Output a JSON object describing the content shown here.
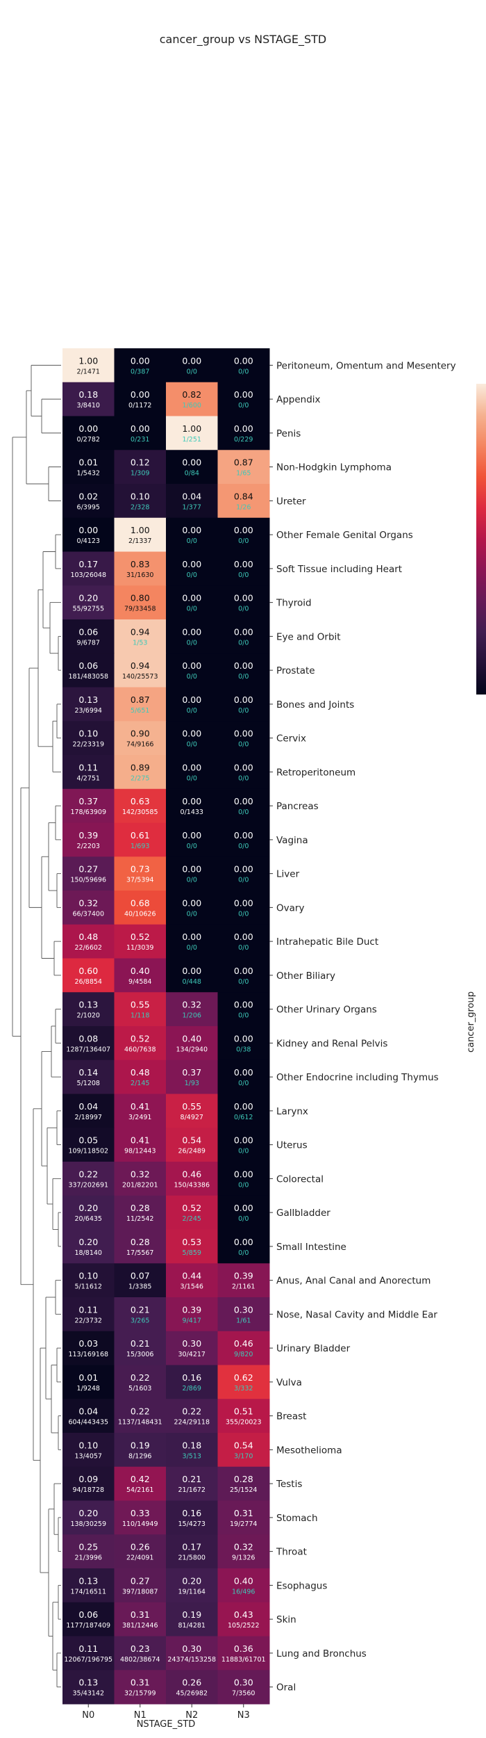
{
  "chart_data": {
    "type": "heatmap",
    "title": "cancer_group vs NSTAGE_STD",
    "xlabel": "NSTAGE_STD",
    "ylabel": "cancer_group",
    "columns": [
      "N0",
      "N1",
      "N2",
      "N3"
    ],
    "colorscale": "rocket",
    "value_range": [
      0,
      1
    ],
    "colorbar": {
      "ticks": [],
      "placement": "right"
    },
    "dendrogram": "left",
    "rows": [
      {
        "label": "Peritoneum, Omentum and Mesentery",
        "values": [
          1.0,
          0.0,
          0.0,
          0.0
        ],
        "counts": [
          "2/1471",
          "0/387",
          "0/0",
          "0/0"
        ]
      },
      {
        "label": "Appendix",
        "values": [
          0.18,
          0.0,
          0.82,
          0.0
        ],
        "counts": [
          "3/8410",
          "0/1172",
          "1/600",
          "0/0"
        ]
      },
      {
        "label": "Penis",
        "values": [
          0.0,
          0.0,
          1.0,
          0.0
        ],
        "counts": [
          "0/2782",
          "0/231",
          "1/251",
          "0/229"
        ]
      },
      {
        "label": "Non-Hodgkin Lymphoma",
        "values": [
          0.01,
          0.12,
          0.0,
          0.87
        ],
        "counts": [
          "1/5432",
          "1/309",
          "0/84",
          "1/65"
        ]
      },
      {
        "label": "Ureter",
        "values": [
          0.02,
          0.1,
          0.04,
          0.84
        ],
        "counts": [
          "6/3995",
          "2/328",
          "1/377",
          "1/26"
        ]
      },
      {
        "label": "Other Female Genital Organs",
        "values": [
          0.0,
          1.0,
          0.0,
          0.0
        ],
        "counts": [
          "0/4123",
          "2/1337",
          "0/0",
          "0/0"
        ]
      },
      {
        "label": "Soft Tissue including Heart",
        "values": [
          0.17,
          0.83,
          0.0,
          0.0
        ],
        "counts": [
          "103/26048",
          "31/1630",
          "0/0",
          "0/0"
        ]
      },
      {
        "label": "Thyroid",
        "values": [
          0.2,
          0.8,
          0.0,
          0.0
        ],
        "counts": [
          "55/92755",
          "79/33458",
          "0/0",
          "0/0"
        ]
      },
      {
        "label": "Eye and Orbit",
        "values": [
          0.06,
          0.94,
          0.0,
          0.0
        ],
        "counts": [
          "9/6787",
          "1/53",
          "0/0",
          "0/0"
        ]
      },
      {
        "label": "Prostate",
        "values": [
          0.06,
          0.94,
          0.0,
          0.0
        ],
        "counts": [
          "181/483058",
          "140/25573",
          "0/0",
          "0/0"
        ]
      },
      {
        "label": "Bones and Joints",
        "values": [
          0.13,
          0.87,
          0.0,
          0.0
        ],
        "counts": [
          "23/6994",
          "5/651",
          "0/0",
          "0/0"
        ]
      },
      {
        "label": "Cervix",
        "values": [
          0.1,
          0.9,
          0.0,
          0.0
        ],
        "counts": [
          "22/23319",
          "74/9166",
          "0/0",
          "0/0"
        ]
      },
      {
        "label": "Retroperitoneum",
        "values": [
          0.11,
          0.89,
          0.0,
          0.0
        ],
        "counts": [
          "4/2751",
          "2/275",
          "0/0",
          "0/0"
        ]
      },
      {
        "label": "Pancreas",
        "values": [
          0.37,
          0.63,
          0.0,
          0.0
        ],
        "counts": [
          "178/63909",
          "142/30585",
          "0/1433",
          "0/0"
        ]
      },
      {
        "label": "Vagina",
        "values": [
          0.39,
          0.61,
          0.0,
          0.0
        ],
        "counts": [
          "2/2203",
          "1/693",
          "0/0",
          "0/0"
        ]
      },
      {
        "label": "Liver",
        "values": [
          0.27,
          0.73,
          0.0,
          0.0
        ],
        "counts": [
          "150/59696",
          "37/5394",
          "0/0",
          "0/0"
        ]
      },
      {
        "label": "Ovary",
        "values": [
          0.32,
          0.68,
          0.0,
          0.0
        ],
        "counts": [
          "66/37400",
          "40/10626",
          "0/0",
          "0/0"
        ]
      },
      {
        "label": "Intrahepatic Bile Duct",
        "values": [
          0.48,
          0.52,
          0.0,
          0.0
        ],
        "counts": [
          "22/6602",
          "11/3039",
          "0/0",
          "0/0"
        ]
      },
      {
        "label": "Other Biliary",
        "values": [
          0.6,
          0.4,
          0.0,
          0.0
        ],
        "counts": [
          "26/8854",
          "9/4584",
          "0/448",
          "0/0"
        ]
      },
      {
        "label": "Other Urinary Organs",
        "values": [
          0.13,
          0.55,
          0.32,
          0.0
        ],
        "counts": [
          "2/1020",
          "1/118",
          "1/206",
          "0/0"
        ]
      },
      {
        "label": "Kidney and Renal Pelvis",
        "values": [
          0.08,
          0.52,
          0.4,
          0.0
        ],
        "counts": [
          "1287/136407",
          "460/7638",
          "134/2940",
          "0/38"
        ]
      },
      {
        "label": "Other Endocrine including Thymus",
        "values": [
          0.14,
          0.48,
          0.37,
          0.0
        ],
        "counts": [
          "5/1208",
          "2/145",
          "1/93",
          "0/0"
        ]
      },
      {
        "label": "Larynx",
        "values": [
          0.04,
          0.41,
          0.55,
          0.0
        ],
        "counts": [
          "2/18997",
          "3/2491",
          "8/4927",
          "0/612"
        ]
      },
      {
        "label": "Uterus",
        "values": [
          0.05,
          0.41,
          0.54,
          0.0
        ],
        "counts": [
          "109/118502",
          "98/12443",
          "26/2489",
          "0/0"
        ]
      },
      {
        "label": "Colorectal",
        "values": [
          0.22,
          0.32,
          0.46,
          0.0
        ],
        "counts": [
          "337/202691",
          "201/82201",
          "150/43386",
          "0/0"
        ]
      },
      {
        "label": "Gallbladder",
        "values": [
          0.2,
          0.28,
          0.52,
          0.0
        ],
        "counts": [
          "20/6435",
          "11/2542",
          "2/245",
          "0/0"
        ]
      },
      {
        "label": "Small Intestine",
        "values": [
          0.2,
          0.28,
          0.53,
          0.0
        ],
        "counts": [
          "18/8140",
          "17/5567",
          "5/859",
          "0/0"
        ]
      },
      {
        "label": "Anus, Anal Canal and Anorectum",
        "values": [
          0.1,
          0.07,
          0.44,
          0.39
        ],
        "counts": [
          "5/11612",
          "1/3385",
          "3/1546",
          "2/1161"
        ]
      },
      {
        "label": "Nose, Nasal Cavity and Middle Ear",
        "values": [
          0.11,
          0.21,
          0.39,
          0.3
        ],
        "counts": [
          "22/3732",
          "3/265",
          "9/417",
          "1/61"
        ]
      },
      {
        "label": "Urinary Bladder",
        "values": [
          0.03,
          0.21,
          0.3,
          0.46
        ],
        "counts": [
          "113/169168",
          "15/3006",
          "30/4217",
          "9/820"
        ]
      },
      {
        "label": "Vulva",
        "values": [
          0.01,
          0.22,
          0.16,
          0.62
        ],
        "counts": [
          "1/9248",
          "5/1603",
          "2/869",
          "3/332"
        ]
      },
      {
        "label": "Breast",
        "values": [
          0.04,
          0.22,
          0.22,
          0.51
        ],
        "counts": [
          "604/443435",
          "1137/148431",
          "224/29118",
          "355/20023"
        ]
      },
      {
        "label": "Mesothelioma",
        "values": [
          0.1,
          0.19,
          0.18,
          0.54
        ],
        "counts": [
          "13/4057",
          "8/1296",
          "3/513",
          "3/170"
        ]
      },
      {
        "label": "Testis",
        "values": [
          0.09,
          0.42,
          0.21,
          0.28
        ],
        "counts": [
          "94/18728",
          "54/2161",
          "21/1672",
          "25/1524"
        ]
      },
      {
        "label": "Stomach",
        "values": [
          0.2,
          0.33,
          0.16,
          0.31
        ],
        "counts": [
          "138/30259",
          "110/14949",
          "15/4273",
          "19/2774"
        ]
      },
      {
        "label": "Throat",
        "values": [
          0.25,
          0.26,
          0.17,
          0.32
        ],
        "counts": [
          "21/3996",
          "22/4091",
          "21/5800",
          "9/1326"
        ]
      },
      {
        "label": "Esophagus",
        "values": [
          0.13,
          0.27,
          0.2,
          0.4
        ],
        "counts": [
          "174/16511",
          "397/18087",
          "19/1164",
          "16/496"
        ]
      },
      {
        "label": "Skin",
        "values": [
          0.06,
          0.31,
          0.19,
          0.43
        ],
        "counts": [
          "1177/187409",
          "381/12446",
          "81/4281",
          "105/2522"
        ]
      },
      {
        "label": "Lung and Bronchus",
        "values": [
          0.11,
          0.23,
          0.3,
          0.36
        ],
        "counts": [
          "12067/196795",
          "4802/38674",
          "24374/153258",
          "11883/61701"
        ]
      },
      {
        "label": "Oral",
        "values": [
          0.13,
          0.31,
          0.26,
          0.3
        ],
        "counts": [
          "35/43142",
          "32/15799",
          "45/26982",
          "7/3560"
        ]
      }
    ]
  }
}
